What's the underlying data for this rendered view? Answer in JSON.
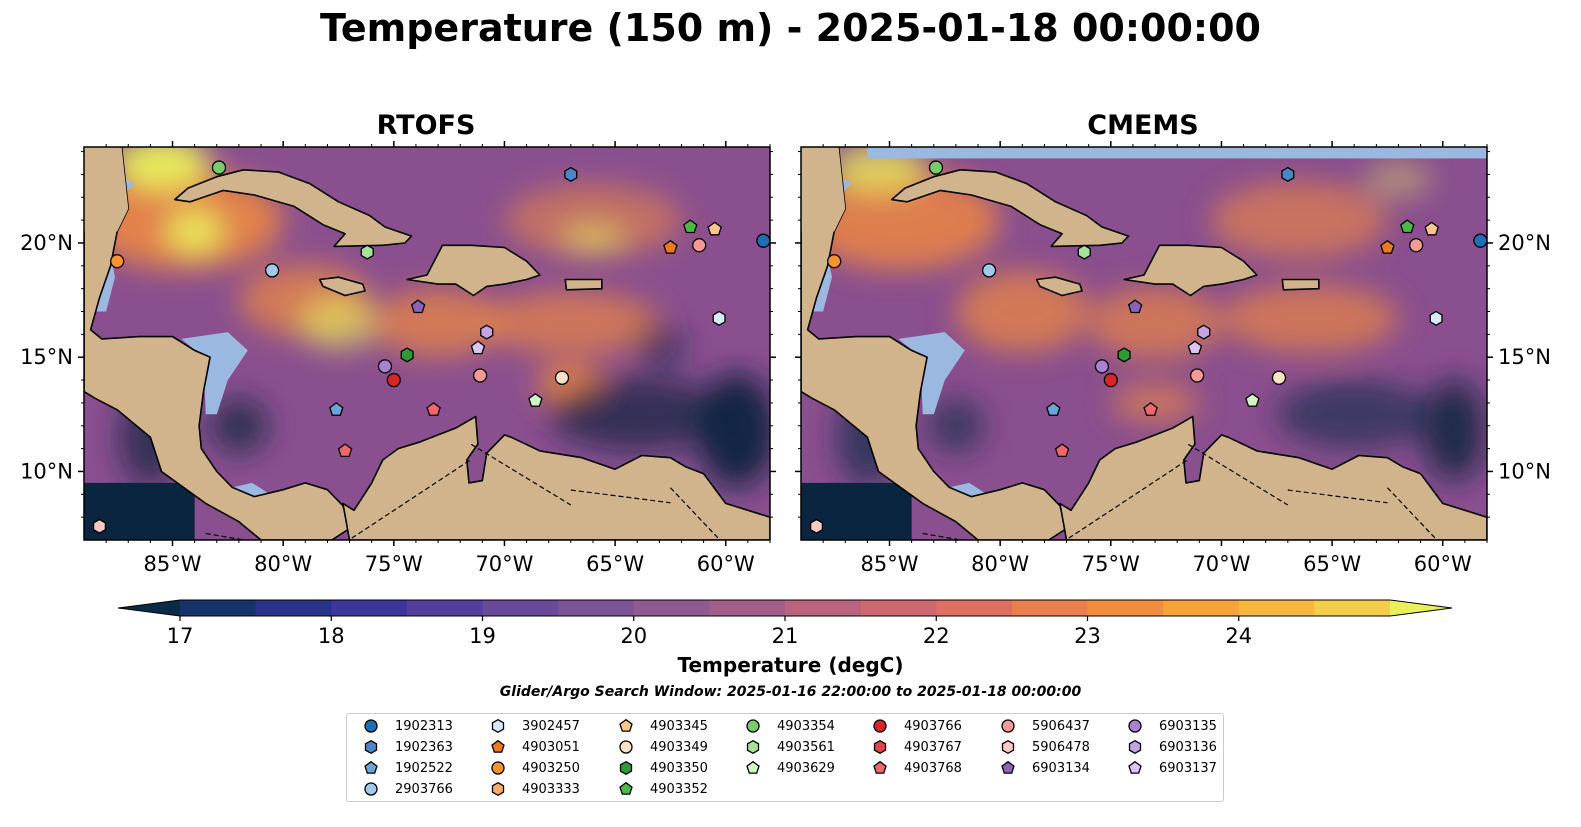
{
  "title": "Temperature (150 m) - 2025-01-18 00:00:00",
  "panels": [
    {
      "id": "rtofs",
      "title": "RTOFS"
    },
    {
      "id": "cmems",
      "title": "CMEMS"
    }
  ],
  "map": {
    "lon_range": [
      -89,
      -58
    ],
    "lat_range": [
      7,
      24.2
    ],
    "lon_ticks": [
      {
        "value": -85,
        "label": "85°W"
      },
      {
        "value": -80,
        "label": "80°W"
      },
      {
        "value": -75,
        "label": "75°W"
      },
      {
        "value": -70,
        "label": "70°W"
      },
      {
        "value": -65,
        "label": "65°W"
      },
      {
        "value": -60,
        "label": "60°W"
      }
    ],
    "lat_ticks": [
      {
        "value": 20,
        "label": "20°N"
      },
      {
        "value": 15,
        "label": "15°N"
      },
      {
        "value": 10,
        "label": "10°N"
      }
    ],
    "colors": {
      "land": "#d2b48c",
      "shallow": "#9ab8e0",
      "cold": "#0a2540",
      "base": "#8a4f8f",
      "warm": "#f18a3f",
      "hot": "#e9f05a"
    }
  },
  "colorbar": {
    "label": "Temperature (degC)",
    "ticks": [
      "17",
      "18",
      "19",
      "20",
      "21",
      "22",
      "23",
      "24"
    ],
    "min": 16.75,
    "max": 24.5,
    "step": 0.5,
    "colors": [
      "#0b2a45",
      "#15326a",
      "#27338a",
      "#3b369b",
      "#543e9e",
      "#694a9a",
      "#7c5396",
      "#8f5a92",
      "#a35e8a",
      "#b9637e",
      "#cc6972",
      "#dd7060",
      "#ea7f4e",
      "#f38d40",
      "#f8a23a",
      "#f8b83f",
      "#f4ce4a",
      "#e9f05a"
    ]
  },
  "search_window": "Glider/Argo Search Window: 2025-01-16 22:00:00 to 2025-01-18 00:00:00",
  "legend": [
    {
      "id": "1902313",
      "marker": "circle",
      "color": "#1f6fb4"
    },
    {
      "id": "1902363",
      "marker": "hexagon",
      "color": "#4a86c8"
    },
    {
      "id": "1902522",
      "marker": "pentagon",
      "color": "#6aa4d8"
    },
    {
      "id": "2903766",
      "marker": "circle",
      "color": "#a2c8ea"
    },
    {
      "id": "3902457",
      "marker": "hexagon",
      "color": "#d7e9f7"
    },
    {
      "id": "4903051",
      "marker": "pentagon",
      "color": "#ed7a1c"
    },
    {
      "id": "4903250",
      "marker": "circle",
      "color": "#f7942f"
    },
    {
      "id": "4903333",
      "marker": "hexagon",
      "color": "#f9ae6b"
    },
    {
      "id": "4903345",
      "marker": "pentagon",
      "color": "#fcc68e"
    },
    {
      "id": "4903349",
      "marker": "circle",
      "color": "#fde2c7"
    },
    {
      "id": "4903350",
      "marker": "hexagon",
      "color": "#2c9a35"
    },
    {
      "id": "4903352",
      "marker": "pentagon",
      "color": "#4cb848"
    },
    {
      "id": "4903354",
      "marker": "circle",
      "color": "#78cc6a"
    },
    {
      "id": "4903561",
      "marker": "hexagon",
      "color": "#a8e29a"
    },
    {
      "id": "4903629",
      "marker": "pentagon",
      "color": "#d2f5c8"
    },
    {
      "id": "4903766",
      "marker": "circle",
      "color": "#d62728"
    },
    {
      "id": "4903767",
      "marker": "hexagon",
      "color": "#e5434a"
    },
    {
      "id": "4903768",
      "marker": "pentagon",
      "color": "#f0686c"
    },
    {
      "id": "5906437",
      "marker": "circle",
      "color": "#f59a96"
    },
    {
      "id": "5906478",
      "marker": "hexagon",
      "color": "#fcc8c4"
    },
    {
      "id": "6903134",
      "marker": "pentagon",
      "color": "#8a62b8"
    },
    {
      "id": "6903135",
      "marker": "circle",
      "color": "#a982d0"
    },
    {
      "id": "6903136",
      "marker": "hexagon",
      "color": "#c4a2e4"
    },
    {
      "id": "6903137",
      "marker": "pentagon",
      "color": "#dcc4f4"
    }
  ],
  "floats": [
    {
      "id": "4903354",
      "lon": -82.9,
      "lat": 23.3
    },
    {
      "id": "1902363",
      "lon": -67.0,
      "lat": 23.0
    },
    {
      "id": "4903250",
      "lon": -87.5,
      "lat": 19.2
    },
    {
      "id": "2903766",
      "lon": -80.5,
      "lat": 18.8
    },
    {
      "id": "4903561",
      "lon": -76.2,
      "lat": 19.6
    },
    {
      "id": "4903352",
      "lon": -61.6,
      "lat": 20.7
    },
    {
      "id": "4903345",
      "lon": -60.5,
      "lat": 20.6
    },
    {
      "id": "4903051",
      "lon": -62.5,
      "lat": 19.8
    },
    {
      "id": "5906437",
      "lon": -61.2,
      "lat": 19.9
    },
    {
      "id": "1902313",
      "lon": -58.3,
      "lat": 20.1
    },
    {
      "id": "6903134",
      "lon": -73.9,
      "lat": 17.2
    },
    {
      "id": "6903136",
      "lon": -70.8,
      "lat": 16.1
    },
    {
      "id": "6903137",
      "lon": -71.2,
      "lat": 15.4
    },
    {
      "id": "3902457",
      "lon": -60.3,
      "lat": 16.7
    },
    {
      "id": "4903350",
      "lon": -74.4,
      "lat": 15.1
    },
    {
      "id": "6903135",
      "lon": -75.4,
      "lat": 14.6
    },
    {
      "id": "4903766",
      "lon": -75.0,
      "lat": 14.0
    },
    {
      "id": "5906437",
      "lon": -71.1,
      "lat": 14.2
    },
    {
      "id": "4903349",
      "lon": -67.4,
      "lat": 14.1
    },
    {
      "id": "4903629",
      "lon": -68.6,
      "lat": 13.1
    },
    {
      "id": "1902522",
      "lon": -77.6,
      "lat": 12.7
    },
    {
      "id": "4903768",
      "lon": -73.2,
      "lat": 12.7
    },
    {
      "id": "4903768",
      "lon": -77.2,
      "lat": 10.9
    },
    {
      "id": "5906478",
      "lon": -88.3,
      "lat": 7.6
    }
  ]
}
